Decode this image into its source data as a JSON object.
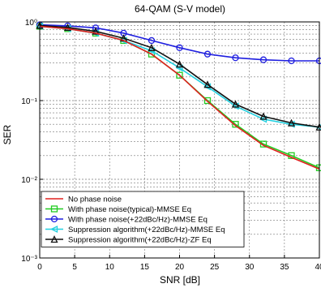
{
  "chart_data": {
    "type": "line",
    "title": "64-QAM (S-V model)",
    "xlabel": "SNR [dB]",
    "ylabel": "SER",
    "xlim": [
      0,
      40
    ],
    "ylim": [
      0.001,
      1
    ],
    "yscale": "log",
    "grid": true,
    "legend_position": "bottom-left",
    "x_ticks": [
      0,
      5,
      10,
      15,
      20,
      25,
      30,
      35,
      40
    ],
    "x_tick_labels": [
      "0",
      "5",
      "10",
      "15",
      "20",
      "25",
      "30",
      "35",
      "40"
    ],
    "y_ticks": [
      0.001,
      0.01,
      0.1,
      1
    ],
    "y_tick_labels": [
      "10⁻³",
      "10⁻²",
      "10⁻¹",
      "10⁰"
    ],
    "series": [
      {
        "name": "No phase noise",
        "color": "#e0201f",
        "marker": "none",
        "x": [
          0,
          4,
          8,
          12,
          16,
          20,
          24,
          28,
          32,
          36,
          40
        ],
        "y": [
          0.88,
          0.82,
          0.72,
          0.58,
          0.39,
          0.21,
          0.098,
          0.048,
          0.027,
          0.019,
          0.0135
        ]
      },
      {
        "name": "With phase noise(typical)-MMSE Eq",
        "color": "#22cc22",
        "marker": "square",
        "x": [
          0,
          4,
          8,
          12,
          16,
          20,
          24,
          28,
          32,
          36,
          40
        ],
        "y": [
          0.88,
          0.82,
          0.72,
          0.58,
          0.39,
          0.21,
          0.1,
          0.05,
          0.028,
          0.02,
          0.014
        ]
      },
      {
        "name": "With phase noise(+22dBc/Hz)-MMSE Eq",
        "color": "#1f1fe0",
        "marker": "circle",
        "x": [
          0,
          4,
          8,
          12,
          16,
          20,
          24,
          28,
          32,
          36,
          40
        ],
        "y": [
          0.92,
          0.89,
          0.84,
          0.72,
          0.58,
          0.47,
          0.39,
          0.35,
          0.33,
          0.32,
          0.32
        ]
      },
      {
        "name": "Suppression algorithm(+22dBc/Hz)-MMSE Eq",
        "color": "#22d0e0",
        "marker": "triangle-left",
        "x": [
          0,
          4,
          8,
          12,
          16,
          20,
          24,
          28,
          32,
          36,
          40
        ],
        "y": [
          0.88,
          0.82,
          0.72,
          0.58,
          0.43,
          0.26,
          0.15,
          0.085,
          0.058,
          0.05,
          0.046
        ]
      },
      {
        "name": "Suppression algorithm(+22dBc/Hz)-ZF Eq",
        "color": "#111111",
        "marker": "triangle-up",
        "x": [
          0,
          4,
          8,
          12,
          16,
          20,
          24,
          28,
          32,
          36,
          40
        ],
        "y": [
          0.9,
          0.85,
          0.76,
          0.62,
          0.47,
          0.29,
          0.16,
          0.09,
          0.063,
          0.052,
          0.046
        ]
      }
    ]
  }
}
